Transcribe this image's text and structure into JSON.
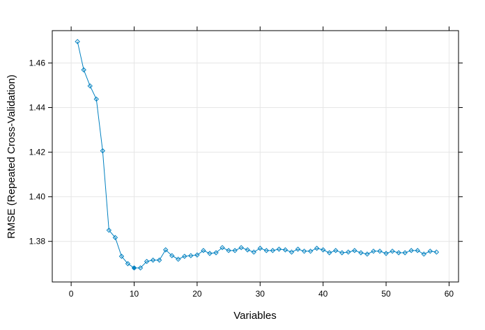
{
  "chart_data": {
    "type": "line",
    "xlabel": "Variables",
    "ylabel": "RMSE (Repeated Cross-Validation)",
    "xlim": [
      -3,
      61.5
    ],
    "ylim": [
      1.3618,
      1.4745
    ],
    "x_ticks": [
      0,
      10,
      20,
      30,
      40,
      50,
      60
    ],
    "y_ticks": [
      1.38,
      1.4,
      1.42,
      1.44,
      1.46
    ],
    "y_tick_labels": [
      "1.38",
      "1.40",
      "1.42",
      "1.44",
      "1.46"
    ],
    "grid": true,
    "colors": {
      "line": "#0080C0",
      "marker": "#0080C0",
      "grid": "#E6E6E6",
      "frame": "#000000"
    },
    "highlight": {
      "x": 10,
      "y": 1.3681
    },
    "series": [
      {
        "x": [
          1,
          2,
          3,
          4,
          5,
          6,
          7,
          8,
          9,
          10,
          11,
          12,
          13,
          14,
          15,
          16,
          17,
          18,
          19,
          20,
          21,
          22,
          23,
          24,
          25,
          26,
          27,
          28,
          29,
          30,
          31,
          32,
          33,
          34,
          35,
          36,
          37,
          38,
          39,
          40,
          41,
          42,
          43,
          44,
          45,
          46,
          47,
          48,
          49,
          50,
          51,
          52,
          53,
          54,
          55,
          56,
          57,
          58
        ],
        "values": [
          1.4696,
          1.4569,
          1.4497,
          1.4438,
          1.4206,
          1.385,
          1.3817,
          1.3733,
          1.37,
          1.3681,
          1.3681,
          1.371,
          1.3716,
          1.3716,
          1.3762,
          1.3736,
          1.372,
          1.3733,
          1.3736,
          1.3739,
          1.3759,
          1.3746,
          1.3749,
          1.3772,
          1.3759,
          1.3759,
          1.3772,
          1.3762,
          1.3752,
          1.3769,
          1.3759,
          1.3759,
          1.3765,
          1.3762,
          1.3752,
          1.3765,
          1.3756,
          1.3756,
          1.3769,
          1.3762,
          1.3749,
          1.3759,
          1.3749,
          1.3752,
          1.3759,
          1.3749,
          1.3743,
          1.3756,
          1.3756,
          1.3746,
          1.3756,
          1.3749,
          1.3749,
          1.3759,
          1.3759,
          1.3743,
          1.3756,
          1.3752
        ]
      }
    ]
  }
}
